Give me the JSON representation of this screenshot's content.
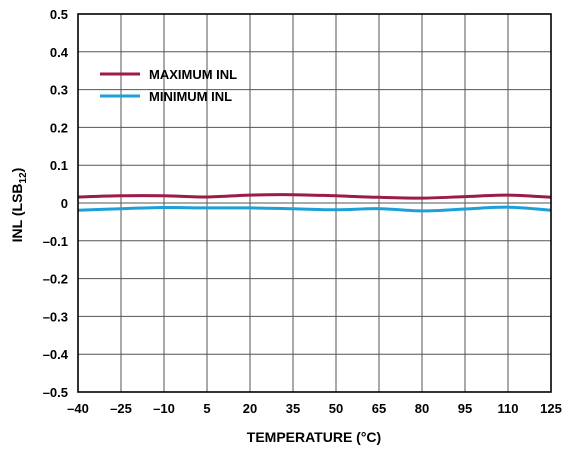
{
  "chart_data": {
    "type": "line",
    "xlabel": "TEMPERATURE (°C)",
    "ylabel_main": "INL (LSB",
    "ylabel_sub": "12",
    "ylabel_close": ")",
    "xlim": [
      -40,
      125
    ],
    "ylim": [
      -0.5,
      0.5
    ],
    "xticks": [
      -40,
      -25,
      -10,
      5,
      20,
      35,
      50,
      65,
      80,
      95,
      110,
      125
    ],
    "xtick_labels": [
      "–40",
      "–25",
      "–10",
      "5",
      "20",
      "35",
      "50",
      "65",
      "80",
      "95",
      "110",
      "125"
    ],
    "yticks": [
      0.5,
      0.4,
      0.3,
      0.2,
      0.1,
      0,
      -0.1,
      -0.2,
      -0.3,
      -0.4,
      -0.5
    ],
    "ytick_labels": [
      "0.5",
      "0.4",
      "0.3",
      "0.2",
      "0.1",
      "0",
      "–0.1",
      "–0.2",
      "–0.3",
      "–0.4",
      "–0.5"
    ],
    "grid": true,
    "legend_position": "top-left",
    "series": [
      {
        "name": "MAXIMUM INL",
        "color": "#9b1b4b",
        "x": [
          -40,
          -25,
          -10,
          5,
          20,
          35,
          50,
          65,
          80,
          95,
          110,
          125
        ],
        "values": [
          0.016,
          0.019,
          0.019,
          0.016,
          0.021,
          0.022,
          0.019,
          0.015,
          0.013,
          0.017,
          0.021,
          0.015
        ]
      },
      {
        "name": "MINIMUM INL",
        "color": "#1d9fd8",
        "x": [
          -40,
          -25,
          -10,
          5,
          20,
          35,
          50,
          65,
          80,
          95,
          110,
          125
        ],
        "values": [
          -0.019,
          -0.015,
          -0.012,
          -0.013,
          -0.013,
          -0.015,
          -0.018,
          -0.015,
          -0.021,
          -0.016,
          -0.011,
          -0.019
        ]
      }
    ]
  }
}
